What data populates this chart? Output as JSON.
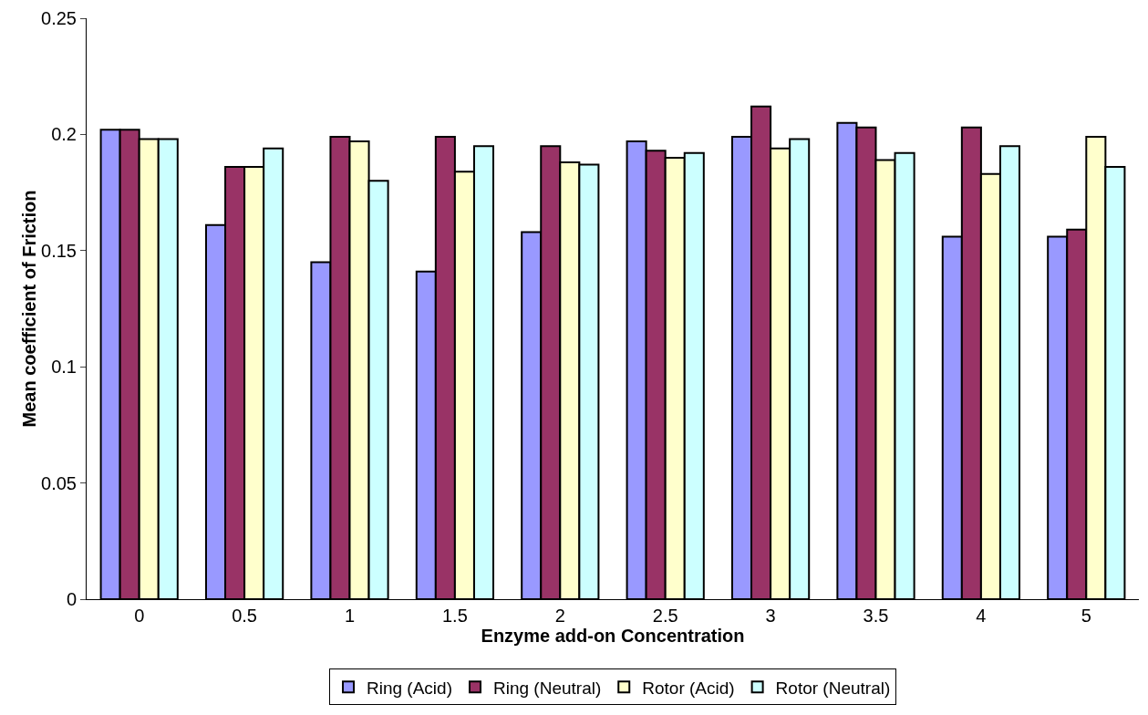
{
  "chart_data": {
    "type": "bar",
    "xlabel": "Enzyme add-on Concentration",
    "ylabel": "Mean coefficient of Friction",
    "categories": [
      "0",
      "0.5",
      "1",
      "1.5",
      "2",
      "2.5",
      "3",
      "3.5",
      "4",
      "5"
    ],
    "series": [
      {
        "name": "Ring (Acid)",
        "color": "#9999ff",
        "values": [
          0.202,
          0.161,
          0.145,
          0.141,
          0.158,
          0.197,
          0.199,
          0.205,
          0.156,
          0.156
        ]
      },
      {
        "name": "Ring (Neutral)",
        "color": "#993366",
        "values": [
          0.202,
          0.186,
          0.199,
          0.199,
          0.195,
          0.193,
          0.212,
          0.203,
          0.203,
          0.159
        ]
      },
      {
        "name": "Rotor (Acid)",
        "color": "#ffffcc",
        "values": [
          0.198,
          0.186,
          0.197,
          0.184,
          0.188,
          0.19,
          0.194,
          0.189,
          0.183,
          0.199
        ]
      },
      {
        "name": "Rotor (Neutral)",
        "color": "#ccffff",
        "values": [
          0.198,
          0.194,
          0.18,
          0.195,
          0.187,
          0.192,
          0.198,
          0.192,
          0.195,
          0.186
        ]
      }
    ],
    "ylim": [
      0,
      0.25
    ],
    "yticks": [
      0,
      0.05,
      0.1,
      0.15,
      0.2,
      0.25
    ],
    "grid": false,
    "legend": "bottom"
  }
}
